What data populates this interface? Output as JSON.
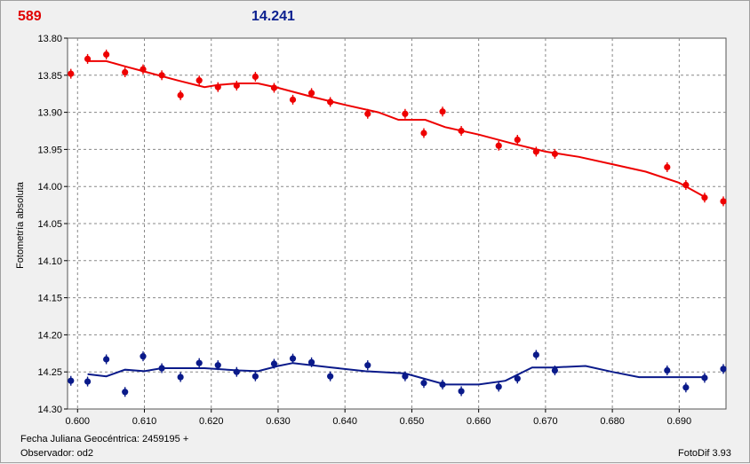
{
  "header": {
    "left_value": "589",
    "right_value": "14.241"
  },
  "footer": {
    "jd_label": "Fecha Juliana Geocéntrica: 2459195 +",
    "observer_label": "Observador: od2",
    "version_label": "FotoDif 3.93"
  },
  "colors": {
    "series1": "#ee0000",
    "series2": "#0a1a8a",
    "grid": "#888888",
    "plot_bg": "#ffffff"
  },
  "chart_data": {
    "type": "scatter",
    "xlabel": "",
    "ylabel": "Fotometría absoluta",
    "xlim": [
      0.5985,
      0.697
    ],
    "ylim": [
      13.8,
      14.3
    ],
    "y_inverted": true,
    "grid": true,
    "x_ticks": [
      "0.600",
      "0.610",
      "0.620",
      "0.630",
      "0.640",
      "0.650",
      "0.660",
      "0.670",
      "0.680",
      "0.690"
    ],
    "y_ticks": [
      "13.80",
      "13.85",
      "13.90",
      "13.95",
      "14.00",
      "14.05",
      "14.10",
      "14.15",
      "14.20",
      "14.25",
      "14.30"
    ],
    "series": [
      {
        "color": "#ee0000",
        "points": [
          [
            0.599,
            13.848
          ],
          [
            0.6015,
            13.828
          ],
          [
            0.6043,
            13.822
          ],
          [
            0.6071,
            13.846
          ],
          [
            0.6098,
            13.842
          ],
          [
            0.6126,
            13.85
          ],
          [
            0.6154,
            13.877
          ],
          [
            0.6182,
            13.857
          ],
          [
            0.621,
            13.866
          ],
          [
            0.6238,
            13.864
          ],
          [
            0.6266,
            13.852
          ],
          [
            0.6294,
            13.867
          ],
          [
            0.6322,
            13.883
          ],
          [
            0.635,
            13.874
          ],
          [
            0.6378,
            13.886
          ],
          [
            0.6434,
            13.902
          ],
          [
            0.649,
            13.902
          ],
          [
            0.6518,
            13.928
          ],
          [
            0.6546,
            13.899
          ],
          [
            0.6574,
            13.925
          ],
          [
            0.663,
            13.945
          ],
          [
            0.6658,
            13.937
          ],
          [
            0.6686,
            13.953
          ],
          [
            0.6714,
            13.956
          ],
          [
            0.6882,
            13.974
          ],
          [
            0.691,
            13.998
          ],
          [
            0.6938,
            14.015
          ],
          [
            0.6966,
            14.02
          ]
        ],
        "fit": [
          [
            0.6015,
            13.831
          ],
          [
            0.6043,
            13.831
          ],
          [
            0.6071,
            13.838
          ],
          [
            0.61,
            13.845
          ],
          [
            0.615,
            13.857
          ],
          [
            0.619,
            13.866
          ],
          [
            0.621,
            13.863
          ],
          [
            0.624,
            13.861
          ],
          [
            0.627,
            13.861
          ],
          [
            0.63,
            13.867
          ],
          [
            0.635,
            13.879
          ],
          [
            0.64,
            13.89
          ],
          [
            0.645,
            13.9
          ],
          [
            0.648,
            13.91
          ],
          [
            0.652,
            13.91
          ],
          [
            0.655,
            13.92
          ],
          [
            0.66,
            13.93
          ],
          [
            0.665,
            13.942
          ],
          [
            0.67,
            13.953
          ],
          [
            0.675,
            13.96
          ],
          [
            0.68,
            13.97
          ],
          [
            0.685,
            13.98
          ],
          [
            0.69,
            13.995
          ],
          [
            0.694,
            14.015
          ]
        ]
      },
      {
        "color": "#0a1a8a",
        "points": [
          [
            0.599,
            14.262
          ],
          [
            0.6015,
            14.263
          ],
          [
            0.6043,
            14.233
          ],
          [
            0.6071,
            14.277
          ],
          [
            0.6098,
            14.229
          ],
          [
            0.6126,
            14.245
          ],
          [
            0.6154,
            14.257
          ],
          [
            0.6182,
            14.238
          ],
          [
            0.621,
            14.241
          ],
          [
            0.6238,
            14.25
          ],
          [
            0.6266,
            14.256
          ],
          [
            0.6294,
            14.239
          ],
          [
            0.6322,
            14.232
          ],
          [
            0.635,
            14.237
          ],
          [
            0.6378,
            14.256
          ],
          [
            0.6434,
            14.241
          ],
          [
            0.649,
            14.256
          ],
          [
            0.6518,
            14.265
          ],
          [
            0.6546,
            14.267
          ],
          [
            0.6574,
            14.276
          ],
          [
            0.663,
            14.27
          ],
          [
            0.6658,
            14.259
          ],
          [
            0.6686,
            14.227
          ],
          [
            0.6714,
            14.248
          ],
          [
            0.6882,
            14.248
          ],
          [
            0.691,
            14.271
          ],
          [
            0.6938,
            14.258
          ],
          [
            0.6966,
            14.246
          ]
        ],
        "fit": [
          [
            0.6015,
            14.253
          ],
          [
            0.6043,
            14.256
          ],
          [
            0.6071,
            14.247
          ],
          [
            0.61,
            14.249
          ],
          [
            0.6126,
            14.245
          ],
          [
            0.619,
            14.245
          ],
          [
            0.624,
            14.248
          ],
          [
            0.627,
            14.249
          ],
          [
            0.63,
            14.242
          ],
          [
            0.6322,
            14.238
          ],
          [
            0.638,
            14.244
          ],
          [
            0.643,
            14.249
          ],
          [
            0.649,
            14.252
          ],
          [
            0.655,
            14.267
          ],
          [
            0.66,
            14.267
          ],
          [
            0.664,
            14.262
          ],
          [
            0.668,
            14.244
          ],
          [
            0.671,
            14.244
          ],
          [
            0.676,
            14.242
          ],
          [
            0.68,
            14.25
          ],
          [
            0.684,
            14.257
          ],
          [
            0.69,
            14.257
          ],
          [
            0.694,
            14.257
          ]
        ]
      }
    ]
  }
}
